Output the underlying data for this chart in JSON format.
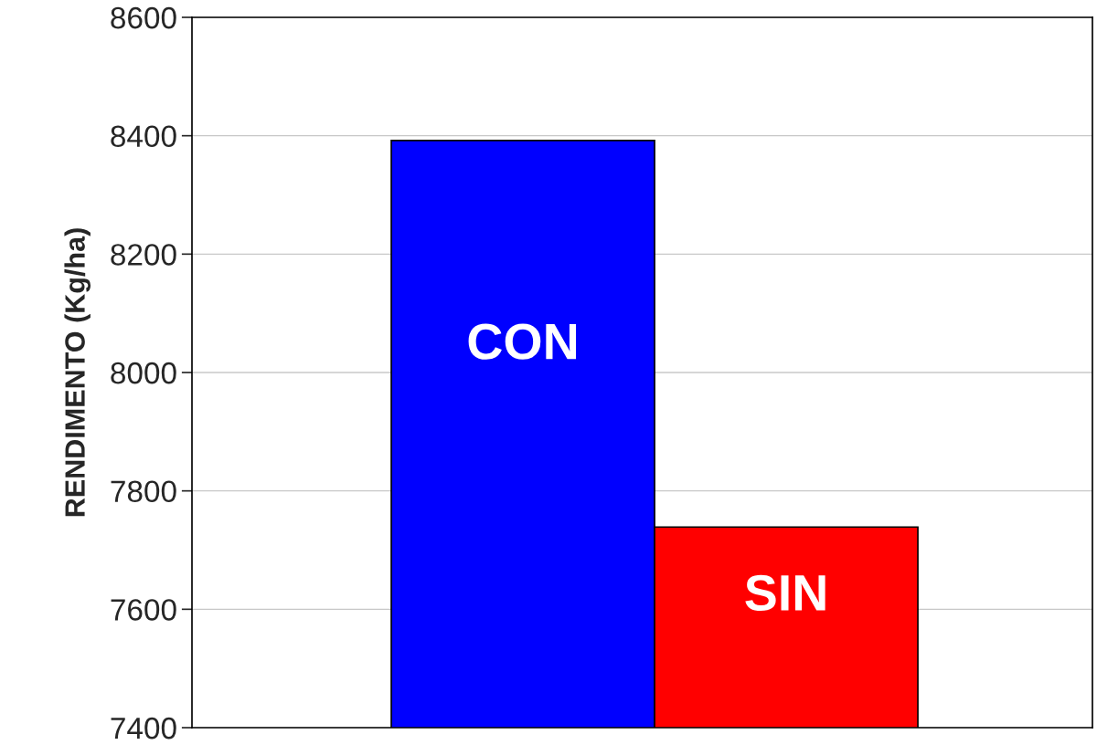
{
  "chart_data": {
    "type": "bar",
    "ylabel": "RENDIMENTO (Kg/ha)",
    "categories": [
      "CON",
      "SIN"
    ],
    "values": [
      8392,
      7739
    ],
    "colors": [
      "#0000ff",
      "#ff0000"
    ],
    "ylim": [
      7400,
      8600
    ],
    "yticks": [
      7400,
      7600,
      7800,
      8000,
      8200,
      8400,
      8600
    ],
    "grid": "y",
    "tick_labels": "y"
  }
}
